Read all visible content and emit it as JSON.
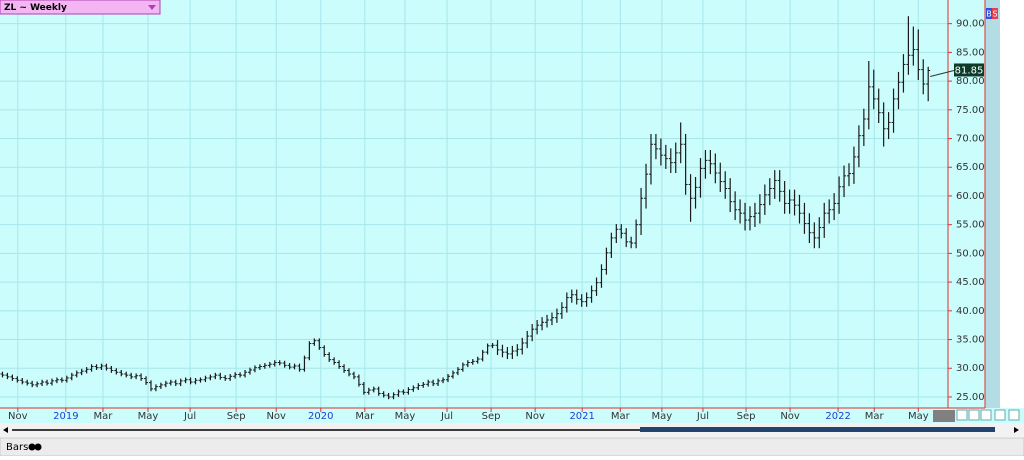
{
  "chart_data": {
    "type": "ohlc",
    "title": "ZL ~ Weekly",
    "color": "#1a1a1a",
    "grid": true,
    "badges": [
      "B",
      "S"
    ],
    "xlim": [
      -0.5,
      191
    ],
    "ylim": [
      23.6,
      93.6
    ],
    "xticks": [
      {
        "value": 3.1,
        "label": "Nov"
      },
      {
        "value": 12.8,
        "label": "2019"
      },
      {
        "value": 20.3,
        "label": "Mar"
      },
      {
        "value": 29.4,
        "label": "May"
      },
      {
        "value": 37.9,
        "label": "Jul"
      },
      {
        "value": 47.2,
        "label": "Sep"
      },
      {
        "value": 55.3,
        "label": "Nov"
      },
      {
        "value": 64.3,
        "label": "2020"
      },
      {
        "value": 73.2,
        "label": "Mar"
      },
      {
        "value": 81.3,
        "label": "May"
      },
      {
        "value": 89.8,
        "label": "Jul"
      },
      {
        "value": 98.7,
        "label": "Sep"
      },
      {
        "value": 107.6,
        "label": "Nov"
      },
      {
        "value": 117.1,
        "label": "2021"
      },
      {
        "value": 124.8,
        "label": "Mar"
      },
      {
        "value": 133.2,
        "label": "May"
      },
      {
        "value": 141.5,
        "label": "Jul"
      },
      {
        "value": 150.2,
        "label": "Sep"
      },
      {
        "value": 159.1,
        "label": "Nov"
      },
      {
        "value": 168.8,
        "label": "2022"
      },
      {
        "value": 176.1,
        "label": "Mar"
      },
      {
        "value": 185,
        "label": "May"
      }
    ],
    "yticks": [
      {
        "value": 25,
        "label": "25.00"
      },
      {
        "value": 30,
        "label": "30.00"
      },
      {
        "value": 35,
        "label": "35.00"
      },
      {
        "value": 40,
        "label": "40.00"
      },
      {
        "value": 45,
        "label": "45.00"
      },
      {
        "value": 50,
        "label": "50.00"
      },
      {
        "value": 55,
        "label": "55.00"
      },
      {
        "value": 60,
        "label": "60.00"
      },
      {
        "value": 65,
        "label": "65.00"
      },
      {
        "value": 70,
        "label": "70.00"
      },
      {
        "value": 75,
        "label": "75.00"
      },
      {
        "value": 80,
        "label": "80.00"
      },
      {
        "value": 85,
        "label": "85.00"
      },
      {
        "value": 90,
        "label": "90.00"
      }
    ],
    "bars": [
      [
        29.0,
        29.4,
        28.4,
        28.8
      ],
      [
        28.8,
        29.2,
        28.1,
        28.5
      ],
      [
        28.5,
        28.9,
        27.8,
        28.2
      ],
      [
        28.2,
        28.6,
        27.5,
        27.9
      ],
      [
        27.9,
        28.3,
        27.2,
        27.6
      ],
      [
        27.6,
        28.0,
        27.0,
        27.4
      ],
      [
        27.4,
        27.8,
        26.7,
        27.1
      ],
      [
        27.1,
        27.7,
        26.7,
        27.3
      ],
      [
        27.3,
        28.0,
        26.9,
        27.6
      ],
      [
        27.6,
        28.0,
        27.0,
        27.4
      ],
      [
        27.4,
        28.2,
        27.0,
        27.8
      ],
      [
        27.8,
        28.4,
        27.4,
        28.0
      ],
      [
        28.0,
        28.4,
        27.5,
        27.9
      ],
      [
        27.9,
        28.7,
        27.5,
        28.3
      ],
      [
        28.3,
        29.2,
        27.9,
        28.8
      ],
      [
        28.8,
        29.6,
        28.4,
        29.2
      ],
      [
        29.2,
        29.9,
        28.8,
        29.5
      ],
      [
        29.5,
        30.2,
        29.1,
        29.8
      ],
      [
        29.8,
        30.7,
        29.4,
        30.3
      ],
      [
        30.3,
        30.7,
        29.7,
        30.1
      ],
      [
        30.1,
        30.8,
        29.7,
        30.4
      ],
      [
        30.4,
        30.8,
        29.6,
        30.0
      ],
      [
        30.0,
        30.4,
        29.2,
        29.6
      ],
      [
        29.6,
        30.0,
        28.9,
        29.3
      ],
      [
        29.3,
        29.7,
        28.6,
        29.0
      ],
      [
        29.0,
        29.4,
        28.4,
        28.8
      ],
      [
        28.8,
        29.2,
        28.1,
        28.5
      ],
      [
        28.5,
        29.1,
        28.1,
        28.7
      ],
      [
        28.7,
        29.1,
        27.8,
        28.2
      ],
      [
        28.2,
        28.6,
        27.1,
        27.5
      ],
      [
        27.5,
        27.9,
        26.0,
        26.4
      ],
      [
        26.4,
        27.2,
        26.0,
        26.8
      ],
      [
        26.8,
        27.5,
        26.4,
        27.1
      ],
      [
        27.1,
        27.8,
        26.7,
        27.4
      ],
      [
        27.4,
        28.0,
        27.0,
        27.6
      ],
      [
        27.6,
        28.0,
        26.9,
        27.3
      ],
      [
        27.3,
        28.2,
        26.9,
        27.8
      ],
      [
        27.8,
        28.4,
        27.4,
        28.0
      ],
      [
        28.0,
        28.4,
        27.2,
        27.6
      ],
      [
        27.6,
        28.3,
        27.2,
        27.9
      ],
      [
        27.9,
        28.4,
        27.5,
        28.0
      ],
      [
        28.0,
        28.7,
        27.6,
        28.3
      ],
      [
        28.3,
        28.9,
        27.9,
        28.5
      ],
      [
        28.5,
        29.2,
        28.1,
        28.8
      ],
      [
        28.8,
        29.2,
        28.0,
        28.4
      ],
      [
        28.4,
        28.8,
        27.8,
        28.2
      ],
      [
        28.2,
        29.0,
        27.8,
        28.6
      ],
      [
        28.6,
        29.3,
        28.2,
        28.9
      ],
      [
        28.9,
        29.3,
        28.4,
        28.8
      ],
      [
        28.8,
        29.7,
        28.4,
        29.3
      ],
      [
        29.3,
        30.1,
        28.9,
        29.7
      ],
      [
        29.7,
        30.5,
        29.3,
        30.1
      ],
      [
        30.1,
        30.7,
        29.7,
        30.3
      ],
      [
        30.3,
        30.9,
        29.9,
        30.5
      ],
      [
        30.5,
        31.1,
        30.1,
        30.7
      ],
      [
        30.7,
        31.4,
        30.3,
        31.0
      ],
      [
        31.0,
        31.4,
        30.5,
        30.9
      ],
      [
        30.9,
        31.3,
        30.1,
        30.5
      ],
      [
        30.5,
        30.9,
        29.8,
        30.2
      ],
      [
        30.2,
        30.8,
        29.8,
        30.4
      ],
      [
        30.4,
        30.8,
        29.4,
        29.8
      ],
      [
        29.8,
        32.2,
        29.4,
        31.8
      ],
      [
        31.8,
        34.7,
        31.4,
        34.3
      ],
      [
        34.3,
        35.2,
        33.9,
        34.8
      ],
      [
        34.8,
        35.2,
        33.2,
        33.6
      ],
      [
        33.6,
        34.0,
        32.0,
        32.4
      ],
      [
        32.4,
        32.8,
        31.1,
        31.5
      ],
      [
        31.5,
        31.9,
        30.6,
        31.0
      ],
      [
        31.0,
        31.4,
        29.9,
        30.3
      ],
      [
        30.3,
        30.7,
        29.2,
        29.6
      ],
      [
        29.6,
        30.0,
        28.6,
        29.0
      ],
      [
        29.0,
        29.4,
        28.1,
        28.5
      ],
      [
        28.5,
        28.9,
        26.8,
        27.2
      ],
      [
        27.2,
        27.6,
        25.4,
        25.8
      ],
      [
        25.8,
        26.6,
        25.4,
        26.2
      ],
      [
        26.2,
        26.8,
        25.8,
        26.4
      ],
      [
        26.4,
        26.8,
        25.2,
        25.6
      ],
      [
        25.6,
        26.0,
        24.9,
        25.3
      ],
      [
        25.3,
        25.7,
        24.6,
        25.0
      ],
      [
        25.0,
        25.8,
        24.6,
        25.4
      ],
      [
        25.4,
        26.3,
        25.0,
        25.9
      ],
      [
        25.9,
        26.3,
        25.4,
        25.8
      ],
      [
        25.8,
        26.7,
        25.4,
        26.3
      ],
      [
        26.3,
        27.0,
        25.9,
        26.6
      ],
      [
        26.6,
        27.4,
        26.2,
        27.0
      ],
      [
        27.0,
        27.6,
        26.6,
        27.2
      ],
      [
        27.2,
        28.0,
        26.8,
        27.6
      ],
      [
        27.6,
        28.0,
        26.9,
        27.3
      ],
      [
        27.3,
        28.2,
        26.9,
        27.8
      ],
      [
        27.8,
        28.4,
        27.4,
        28.0
      ],
      [
        28.0,
        29.0,
        27.6,
        28.6
      ],
      [
        28.6,
        29.6,
        28.2,
        29.2
      ],
      [
        29.2,
        30.2,
        28.8,
        29.8
      ],
      [
        29.8,
        31.0,
        29.4,
        30.6
      ],
      [
        30.6,
        31.4,
        30.2,
        31.0
      ],
      [
        31.0,
        31.6,
        30.6,
        31.2
      ],
      [
        31.2,
        32.0,
        30.8,
        31.6
      ],
      [
        31.6,
        33.2,
        31.2,
        32.8
      ],
      [
        32.8,
        34.3,
        32.4,
        33.9
      ],
      [
        33.9,
        34.4,
        33.5,
        34.0
      ],
      [
        34.0,
        34.9,
        32.3,
        33.2
      ],
      [
        33.2,
        34.1,
        31.9,
        32.8
      ],
      [
        32.8,
        33.7,
        31.6,
        32.5
      ],
      [
        32.5,
        33.9,
        31.6,
        33.0
      ],
      [
        33.0,
        34.2,
        32.1,
        33.3
      ],
      [
        33.3,
        35.3,
        32.4,
        34.4
      ],
      [
        34.4,
        36.5,
        33.5,
        35.6
      ],
      [
        35.6,
        37.7,
        34.7,
        36.8
      ],
      [
        36.8,
        38.4,
        35.9,
        37.5
      ],
      [
        37.5,
        38.9,
        36.6,
        38.0
      ],
      [
        38.0,
        39.3,
        37.1,
        38.4
      ],
      [
        38.4,
        39.7,
        37.5,
        38.8
      ],
      [
        38.8,
        40.4,
        37.9,
        39.5
      ],
      [
        39.5,
        41.5,
        38.6,
        40.6
      ],
      [
        40.6,
        43.2,
        39.7,
        42.3
      ],
      [
        42.3,
        43.7,
        41.4,
        42.8
      ],
      [
        42.8,
        43.7,
        41.1,
        42.0
      ],
      [
        42.0,
        42.9,
        40.7,
        41.6
      ],
      [
        41.6,
        43.2,
        40.7,
        42.3
      ],
      [
        42.3,
        44.4,
        41.4,
        43.5
      ],
      [
        43.5,
        45.8,
        42.6,
        44.9
      ],
      [
        44.9,
        48.1,
        44.0,
        47.2
      ],
      [
        47.2,
        51.0,
        46.3,
        50.1
      ],
      [
        50.1,
        53.6,
        49.2,
        52.7
      ],
      [
        52.7,
        55.1,
        51.8,
        54.2
      ],
      [
        54.2,
        55.1,
        52.6,
        53.5
      ],
      [
        53.5,
        54.4,
        51.1,
        52.0
      ],
      [
        52.0,
        52.9,
        50.9,
        51.8
      ],
      [
        51.8,
        55.9,
        50.9,
        55.0
      ],
      [
        55.0,
        61.4,
        53.2,
        59.6
      ],
      [
        59.6,
        65.6,
        57.8,
        63.8
      ],
      [
        63.8,
        70.8,
        62.0,
        69.0
      ],
      [
        69.0,
        70.8,
        66.4,
        68.2
      ],
      [
        68.2,
        70.0,
        65.3,
        67.1
      ],
      [
        67.1,
        68.9,
        64.7,
        66.5
      ],
      [
        66.5,
        68.3,
        64.0,
        65.8
      ],
      [
        65.8,
        69.3,
        64.0,
        67.5
      ],
      [
        67.5,
        72.8,
        65.7,
        69.0
      ],
      [
        69.0,
        70.8,
        60.2,
        62.0
      ],
      [
        62.0,
        63.8,
        55.5,
        59.6
      ],
      [
        59.6,
        63.3,
        57.8,
        61.5
      ],
      [
        61.5,
        66.6,
        59.7,
        64.8
      ],
      [
        64.8,
        68.0,
        63.0,
        66.2
      ],
      [
        66.2,
        68.0,
        63.8,
        65.6
      ],
      [
        65.6,
        67.4,
        62.2,
        64.0
      ],
      [
        64.0,
        65.8,
        60.7,
        62.5
      ],
      [
        62.5,
        64.3,
        59.5,
        61.3
      ],
      [
        61.3,
        63.1,
        57.2,
        59.0
      ],
      [
        59.0,
        60.8,
        55.8,
        57.6
      ],
      [
        57.6,
        59.4,
        55.2,
        57.0
      ],
      [
        57.0,
        58.8,
        54.0,
        55.8
      ],
      [
        55.8,
        58.2,
        54.0,
        56.4
      ],
      [
        56.4,
        58.8,
        54.6,
        57.0
      ],
      [
        57.0,
        60.3,
        55.2,
        58.5
      ],
      [
        58.5,
        62.0,
        56.7,
        60.2
      ],
      [
        60.2,
        63.1,
        58.4,
        61.3
      ],
      [
        61.3,
        64.5,
        59.5,
        62.7
      ],
      [
        62.7,
        64.5,
        59.0,
        60.8
      ],
      [
        60.8,
        62.6,
        56.9,
        58.7
      ],
      [
        58.7,
        61.1,
        56.9,
        59.3
      ],
      [
        59.3,
        61.1,
        56.6,
        58.4
      ],
      [
        58.4,
        60.2,
        55.2,
        57.0
      ],
      [
        57.0,
        58.8,
        53.4,
        55.2
      ],
      [
        55.2,
        57.0,
        51.8,
        53.6
      ],
      [
        53.6,
        55.4,
        50.9,
        52.7
      ],
      [
        52.7,
        56.3,
        50.9,
        54.5
      ],
      [
        54.5,
        58.8,
        52.7,
        57.0
      ],
      [
        57.0,
        59.4,
        55.2,
        57.6
      ],
      [
        57.6,
        60.5,
        55.8,
        58.7
      ],
      [
        58.7,
        63.4,
        56.9,
        61.6
      ],
      [
        61.6,
        65.3,
        59.8,
        63.5
      ],
      [
        63.5,
        65.7,
        61.7,
        63.9
      ],
      [
        63.9,
        68.6,
        62.1,
        66.8
      ],
      [
        66.8,
        72.3,
        65.0,
        70.5
      ],
      [
        70.5,
        75.2,
        68.7,
        73.4
      ],
      [
        73.4,
        83.5,
        71.6,
        79.0
      ],
      [
        79.0,
        82.0,
        75.1,
        76.9
      ],
      [
        76.9,
        78.7,
        72.7,
        74.5
      ],
      [
        74.5,
        76.3,
        68.6,
        71.7
      ],
      [
        71.7,
        74.6,
        69.9,
        72.8
      ],
      [
        72.8,
        78.7,
        71.0,
        76.9
      ],
      [
        76.9,
        81.6,
        75.1,
        79.8
      ],
      [
        79.8,
        84.7,
        78.0,
        82.9
      ],
      [
        82.9,
        91.3,
        81.1,
        84.5
      ],
      [
        84.5,
        89.5,
        82.7,
        85.5
      ],
      [
        85.5,
        89.0,
        80.2,
        82.0
      ],
      [
        82.0,
        83.8,
        77.7,
        79.5
      ],
      [
        79.5,
        82.5,
        76.5,
        81.85
      ]
    ]
  },
  "toolbar": {
    "label": "Bars"
  }
}
